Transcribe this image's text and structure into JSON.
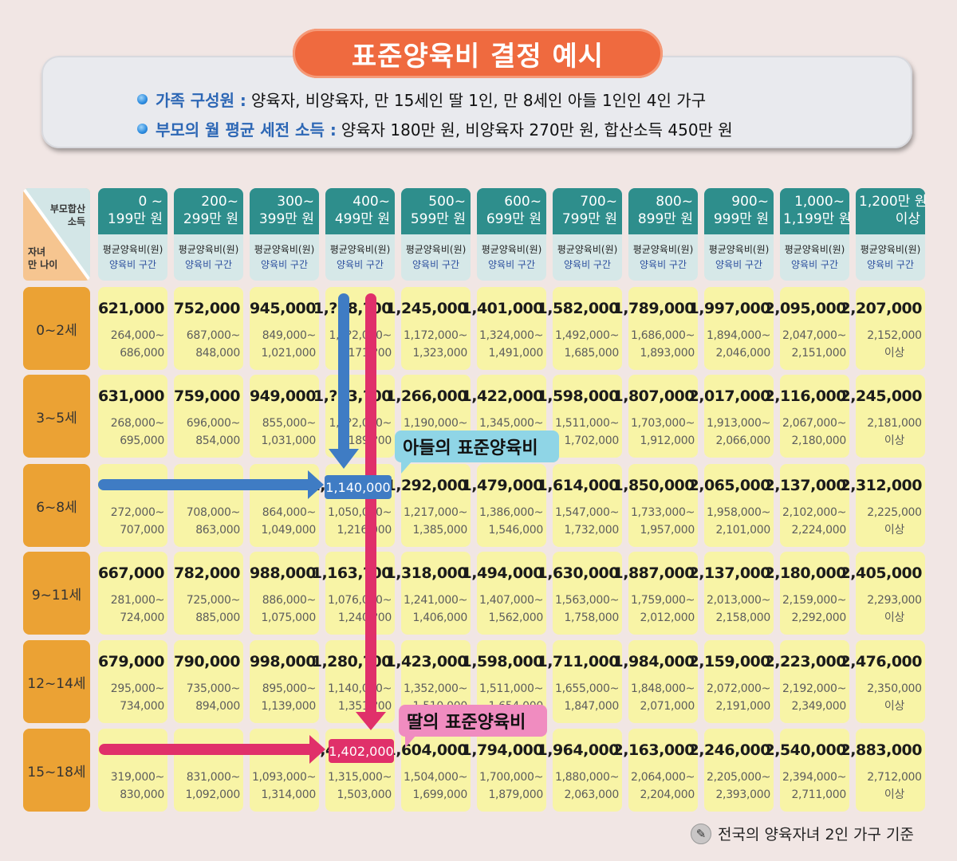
{
  "title": "표준양육비 결정 예시",
  "info": {
    "family": {
      "key": "가족 구성원 :",
      "value": "양육자, 비양육자, 만 15세인 딸 1인, 만 8세인 아들 1인인 4인 가구"
    },
    "income": {
      "key": "부모의 월 평균 세전 소득 :",
      "value": "양육자 180만 원, 비양육자 270만 원, 합산소득 450만 원"
    }
  },
  "corner": {
    "top_line1": "부모합산",
    "top_line2": "소득",
    "bottom_line1": "자녀",
    "bottom_line2": "만 나이"
  },
  "sub_labels": {
    "avg": "평균양육비(원)",
    "range": "양육비 구간"
  },
  "columns": [
    {
      "l1": "0 ~",
      "l2": "199만 원"
    },
    {
      "l1": "200~",
      "l2": "299만 원"
    },
    {
      "l1": "300~",
      "l2": "399만 원"
    },
    {
      "l1": "400~",
      "l2": "499만 원"
    },
    {
      "l1": "500~",
      "l2": "599만 원"
    },
    {
      "l1": "600~",
      "l2": "699만 원"
    },
    {
      "l1": "700~",
      "l2": "799만 원"
    },
    {
      "l1": "800~",
      "l2": "899만 원"
    },
    {
      "l1": "900~",
      "l2": "999만 원"
    },
    {
      "l1": "1,000~",
      "l2": "1,199만 원"
    },
    {
      "l1": "1,200만 원",
      "l2": "이상"
    }
  ],
  "rows": [
    {
      "age": "0~2세",
      "cells": [
        {
          "avg": "621,000",
          "r1": "264,000~",
          "r2": "686,000"
        },
        {
          "avg": "752,000",
          "r1": "687,000~",
          "r2": "848,000"
        },
        {
          "avg": "945,000",
          "r1": "849,000~",
          "r2": "1,021,000"
        },
        {
          "avg": "1,?98,?00",
          "r1": "1,0?2,000~",
          "r2": "1,171,?00"
        },
        {
          "avg": "1,245,000",
          "r1": "1,172,000~",
          "r2": "1,323,000"
        },
        {
          "avg": "1,401,000",
          "r1": "1,324,000~",
          "r2": "1,491,000"
        },
        {
          "avg": "1,582,000",
          "r1": "1,492,000~",
          "r2": "1,685,000"
        },
        {
          "avg": "1,789,000",
          "r1": "1,686,000~",
          "r2": "1,893,000"
        },
        {
          "avg": "1,997,000",
          "r1": "1,894,000~",
          "r2": "2,046,000"
        },
        {
          "avg": "2,095,000",
          "r1": "2,047,000~",
          "r2": "2,151,000"
        },
        {
          "avg": "2,207,000",
          "r1": "2,152,000",
          "r2": "이상"
        }
      ]
    },
    {
      "age": "3~5세",
      "cells": [
        {
          "avg": "631,000",
          "r1": "268,000~",
          "r2": "695,000"
        },
        {
          "avg": "759,000",
          "r1": "696,000~",
          "r2": "854,000"
        },
        {
          "avg": "949,000",
          "r1": "855,000~",
          "r2": "1,031,000"
        },
        {
          "avg": "1,?13,?00",
          "r1": "1,0?2,000~",
          "r2": "1,189,?00"
        },
        {
          "avg": "1,266,000",
          "r1": "1,190,000~",
          "r2": "1,344,000"
        },
        {
          "avg": "1,422,000",
          "r1": "1,345,000~",
          "r2": "1,510,000"
        },
        {
          "avg": "1,598,000",
          "r1": "1,511,000~",
          "r2": "1,702,000"
        },
        {
          "avg": "1,807,000",
          "r1": "1,703,000~",
          "r2": "1,912,000"
        },
        {
          "avg": "2,017,000",
          "r1": "1,913,000~",
          "r2": "2,066,000"
        },
        {
          "avg": "2,116,000",
          "r1": "2,067,000~",
          "r2": "2,180,000"
        },
        {
          "avg": "2,245,000",
          "r1": "2,181,000",
          "r2": "이상"
        }
      ]
    },
    {
      "age": "6~8세",
      "cells": [
        {
          "avg": "",
          "r1": "272,000~",
          "r2": "707,000"
        },
        {
          "avg": "",
          "r1": "708,000~",
          "r2": "863,000"
        },
        {
          "avg": "",
          "r1": "864,000~",
          "r2": "1,049,000"
        },
        {
          "avg": "1,140,000",
          "r1": "1,050,000~",
          "r2": "1,216,000"
        },
        {
          "avg": "1,292,000",
          "r1": "1,217,000~",
          "r2": "1,385,000"
        },
        {
          "avg": "1,479,000",
          "r1": "1,386,000~",
          "r2": "1,546,000"
        },
        {
          "avg": "1,614,000",
          "r1": "1,547,000~",
          "r2": "1,732,000"
        },
        {
          "avg": "1,850,000",
          "r1": "1,733,000~",
          "r2": "1,957,000"
        },
        {
          "avg": "2,065,000",
          "r1": "1,958,000~",
          "r2": "2,101,000"
        },
        {
          "avg": "2,137,000",
          "r1": "2,102,000~",
          "r2": "2,224,000"
        },
        {
          "avg": "2,312,000",
          "r1": "2,225,000",
          "r2": "이상"
        }
      ]
    },
    {
      "age": "9~11세",
      "cells": [
        {
          "avg": "667,000",
          "r1": "281,000~",
          "r2": "724,000"
        },
        {
          "avg": "782,000",
          "r1": "725,000~",
          "r2": "885,000"
        },
        {
          "avg": "988,000",
          "r1": "886,000~",
          "r2": "1,075,000"
        },
        {
          "avg": "1,163,?00",
          "r1": "1,076,000~",
          "r2": "1,240,?00"
        },
        {
          "avg": "1,318,000",
          "r1": "1,241,000~",
          "r2": "1,406,000"
        },
        {
          "avg": "1,494,000",
          "r1": "1,407,000~",
          "r2": "1,562,000"
        },
        {
          "avg": "1,630,000",
          "r1": "1,563,000~",
          "r2": "1,758,000"
        },
        {
          "avg": "1,887,000",
          "r1": "1,759,000~",
          "r2": "2,012,000"
        },
        {
          "avg": "2,137,000",
          "r1": "2,013,000~",
          "r2": "2,158,000"
        },
        {
          "avg": "2,180,000",
          "r1": "2,159,000~",
          "r2": "2,292,000"
        },
        {
          "avg": "2,405,000",
          "r1": "2,293,000",
          "r2": "이상"
        }
      ]
    },
    {
      "age": "12~14세",
      "cells": [
        {
          "avg": "679,000",
          "r1": "295,000~",
          "r2": "734,000"
        },
        {
          "avg": "790,000",
          "r1": "735,000~",
          "r2": "894,000"
        },
        {
          "avg": "998,000",
          "r1": "895,000~",
          "r2": "1,139,000"
        },
        {
          "avg": "1,280,?00",
          "r1": "1,140,000~",
          "r2": "1,351,?00"
        },
        {
          "avg": "1,423,000",
          "r1": "1,352,000~",
          "r2": "1,510,000"
        },
        {
          "avg": "1,598,000",
          "r1": "1,511,000~",
          "r2": "1,654,000"
        },
        {
          "avg": "1,711,000",
          "r1": "1,655,000~",
          "r2": "1,847,000"
        },
        {
          "avg": "1,984,000",
          "r1": "1,848,000~",
          "r2": "2,071,000"
        },
        {
          "avg": "2,159,000",
          "r1": "2,072,000~",
          "r2": "2,191,000"
        },
        {
          "avg": "2,223,000",
          "r1": "2,192,000~",
          "r2": "2,349,000"
        },
        {
          "avg": "2,476,000",
          "r1": "2,350,000",
          "r2": "이상"
        }
      ]
    },
    {
      "age": "15~18세",
      "cells": [
        {
          "avg": "",
          "r1": "319,000~",
          "r2": "830,000"
        },
        {
          "avg": "",
          "r1": "831,000~",
          "r2": "1,092,000"
        },
        {
          "avg": "",
          "r1": "1,093,000~",
          "r2": "1,314,000"
        },
        {
          "avg": "1,402,000",
          "r1": "1,315,000~",
          "r2": "1,503,000"
        },
        {
          "avg": "1,604,000",
          "r1": "1,504,000~",
          "r2": "1,699,000"
        },
        {
          "avg": "1,794,000",
          "r1": "1,700,000~",
          "r2": "1,879,000"
        },
        {
          "avg": "1,964,000",
          "r1": "1,880,000~",
          "r2": "2,063,000"
        },
        {
          "avg": "2,163,000",
          "r1": "2,064,000~",
          "r2": "2,204,000"
        },
        {
          "avg": "2,246,000",
          "r1": "2,205,000~",
          "r2": "2,393,000"
        },
        {
          "avg": "2,540,000",
          "r1": "2,394,000~",
          "r2": "2,711,000"
        },
        {
          "avg": "2,883,000",
          "r1": "2,712,000",
          "r2": "이상"
        }
      ]
    }
  ],
  "highlights": {
    "son": {
      "value": "1,140,000",
      "callout": "아들의 표준양육비",
      "color": "#3f7cc4"
    },
    "daughter": {
      "value": "1,402,000",
      "callout": "딸의 표준양육비",
      "color": "#e0306a"
    }
  },
  "footnote": {
    "icon": "pencil-icon",
    "text": "전국의 양육자녀 2인 가구 기준"
  },
  "colors": {
    "title_bg": "#ef6a3f",
    "header_teal": "#2e8e8c",
    "header_sub": "#d6e8e8",
    "age_label": "#eba234",
    "cell_bg": "#f8f4a6",
    "background": "#f1e6e4"
  }
}
